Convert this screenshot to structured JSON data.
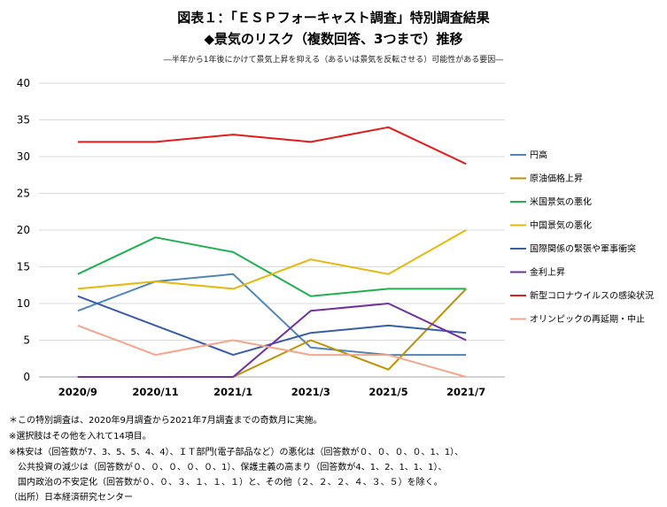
{
  "header": {
    "title": "図表１：「ＥＳＰフォーキャスト調査」特別調査結果",
    "subtitle": "◆景気のリスク（複数回答、3つまで）推移",
    "caption": "―半年から1年後にかけて景気上昇を抑える（あるいは景気を反転させる）可能性がある要因―"
  },
  "chart_data": {
    "type": "line",
    "categories": [
      "2020/9",
      "2020/11",
      "2021/1",
      "2021/3",
      "2021/5",
      "2021/7"
    ],
    "ylim": [
      0,
      40
    ],
    "yticks": [
      0,
      5,
      10,
      15,
      20,
      25,
      30,
      35,
      40
    ],
    "grid": true,
    "legend_position": "right",
    "series": [
      {
        "name": "円高",
        "color": "#4f86b9",
        "values": [
          9,
          13,
          14,
          4,
          3,
          3
        ]
      },
      {
        "name": "原油価格上昇",
        "color": "#bf9000",
        "values": [
          0,
          0,
          0,
          5,
          1,
          12
        ]
      },
      {
        "name": "米国景気の悪化",
        "color": "#20b050",
        "values": [
          14,
          19,
          17,
          11,
          12,
          12
        ]
      },
      {
        "name": "中国景気の悪化",
        "color": "#e5b80b",
        "values": [
          12,
          13,
          12,
          16,
          14,
          20
        ]
      },
      {
        "name": "国際関係の緊張や軍事衝突",
        "color": "#3a5da8",
        "values": [
          11,
          7,
          3,
          6,
          7,
          6
        ]
      },
      {
        "name": "金利上昇",
        "color": "#7030a0",
        "values": [
          0,
          0,
          0,
          9,
          10,
          5
        ]
      },
      {
        "name": "新型コロナウイルスの感染状況",
        "color": "#e31b1b",
        "values": [
          32,
          32,
          33,
          32,
          34,
          29
        ]
      },
      {
        "name": "オリンピックの再延期・中止",
        "color": "#f4a58a",
        "values": [
          7,
          3,
          5,
          3,
          3,
          0
        ]
      }
    ]
  },
  "notes": [
    "＊この特別調査は、2020年9月調査から2021年7月調査までの奇数月に実施。",
    "※選択肢はその他を入れて14項目。",
    "※株安は（回答数が7、3、5、5、4、4）、ＩＴ部門(電子部品など）の悪化は（回答数が０、０、０、０、1、1）、",
    "　公共投資の減少は（回答数が０、０、０、０、０、1）、保護主義の高まり（回答数が4、1、2、1、1、1）、",
    "　国内政治の不安定化（回答数が０、０、３、１、１、１）と、その他（２、２、２、４、３、５）を除く。",
    "（出所）日本経済研究センター"
  ]
}
